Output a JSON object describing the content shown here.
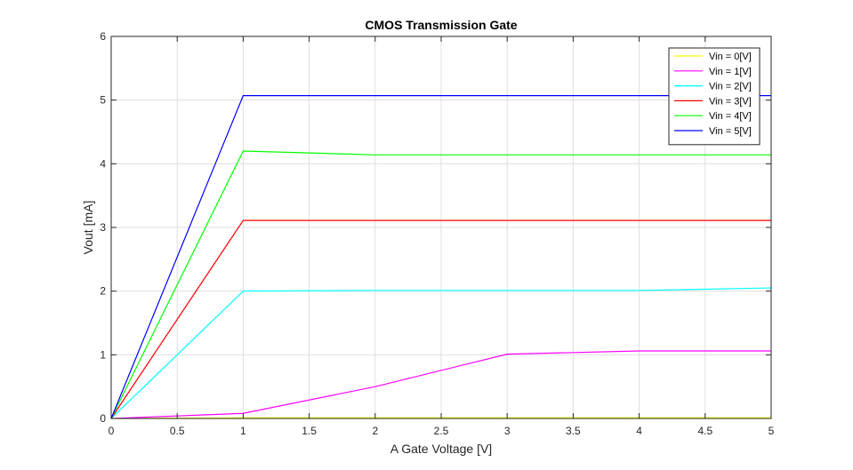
{
  "chart_data": {
    "type": "line",
    "title": "CMOS Transmission Gate",
    "xlabel": "A Gate Voltage [V]",
    "ylabel": "Vout [mA]",
    "xlim": [
      0,
      5
    ],
    "ylim": [
      0,
      6
    ],
    "xticks": [
      "0",
      "0.5",
      "1",
      "1.5",
      "2",
      "2.5",
      "3",
      "3.5",
      "4",
      "4.5",
      "5"
    ],
    "yticks": [
      "0",
      "1",
      "2",
      "3",
      "4",
      "5",
      "6"
    ],
    "grid": true,
    "legend_position": "top-right",
    "x": [
      0,
      1,
      2,
      3,
      4,
      5
    ],
    "series": [
      {
        "name": "Vin = 0[V]",
        "color": "#ffff00",
        "values": [
          0,
          0.01,
          0.01,
          0.01,
          0.01,
          0.01
        ]
      },
      {
        "name": "Vin = 1[V]",
        "color": "#ff00ff",
        "values": [
          0,
          0.08,
          0.5,
          1.01,
          1.06,
          1.06
        ]
      },
      {
        "name": "Vin = 2[V]",
        "color": "#00ffff",
        "values": [
          0,
          2.0,
          2.01,
          2.01,
          2.01,
          2.05
        ]
      },
      {
        "name": "Vin = 3[V]",
        "color": "#ff0000",
        "values": [
          0,
          3.11,
          3.11,
          3.11,
          3.11,
          3.11
        ]
      },
      {
        "name": "Vin = 4[V]",
        "color": "#00ff00",
        "values": [
          0,
          4.2,
          4.14,
          4.14,
          4.14,
          4.14
        ]
      },
      {
        "name": "Vin = 5[V]",
        "color": "#0000ff",
        "values": [
          0,
          5.07,
          5.07,
          5.07,
          5.07,
          5.07
        ]
      }
    ]
  }
}
